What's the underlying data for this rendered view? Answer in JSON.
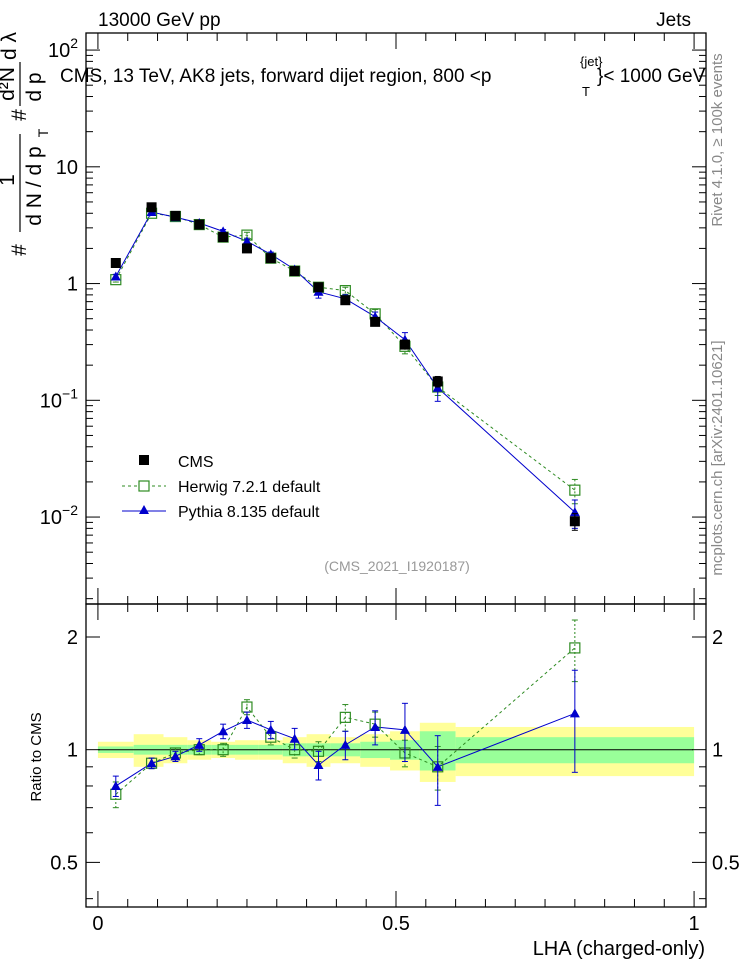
{
  "header": {
    "left": "13000 GeV pp",
    "right": "Jets",
    "analysis_tag": "(CMS_2021_I1920187)",
    "side_right": "Rivet 4.1.0, ≥ 100k events",
    "side_source": "mcplots.cern.ch [arXiv:2401.10621]"
  },
  "chart_data": [
    {
      "type": "scatter",
      "name": "main",
      "title": "CMS, 13 TeV, AK8 jets, forward dijet region, 800 <p",
      "title_sup": "{jet}",
      "title_sub": "T",
      "title_tail": "}< 1000 GeV",
      "ylabel_lead": "#",
      "ylabel_frac1_num": "1",
      "ylabel_frac1_den": "d N / d p",
      "ylabel_sub": "T",
      "ylabel_mid": "#",
      "ylabel_frac2_num": "d²N",
      "ylabel_frac2_den": "d p",
      "ylabel_tail": "d λ",
      "yscale": "log",
      "ylim": [
        0.0018,
        140
      ],
      "xlim": [
        -0.02,
        1.02
      ],
      "yticks": [
        {
          "v": 0.01,
          "b": "10",
          "e": "−2"
        },
        {
          "v": 0.1,
          "b": "10",
          "e": "−1"
        },
        {
          "v": 1,
          "b": "1",
          "e": ""
        },
        {
          "v": 10,
          "b": "10",
          "e": ""
        },
        {
          "v": 100,
          "b": "10",
          "e": "2"
        }
      ],
      "legend": [
        "CMS",
        "Herwig 7.2.1 default",
        "Pythia 8.135 default"
      ],
      "colors": {
        "cms": "#000000",
        "herwig": "#2e8b22",
        "pythia": "#0000cc"
      },
      "series": [
        {
          "name": "CMS",
          "x": [
            0.03,
            0.09,
            0.13,
            0.17,
            0.21,
            0.25,
            0.29,
            0.33,
            0.37,
            0.415,
            0.465,
            0.515,
            0.57,
            0.8
          ],
          "y": [
            1.5,
            4.5,
            3.8,
            3.2,
            2.5,
            2.0,
            1.65,
            1.28,
            0.93,
            0.72,
            0.47,
            0.3,
            0.145,
            0.0092
          ],
          "err": [
            0.06,
            0.15,
            0.12,
            0.1,
            0.08,
            0.07,
            0.06,
            0.05,
            0.04,
            0.03,
            0.03,
            0.02,
            0.015,
            0.0015
          ]
        },
        {
          "name": "Herwig 7.2.1 default",
          "x": [
            0.03,
            0.09,
            0.13,
            0.17,
            0.21,
            0.25,
            0.29,
            0.33,
            0.37,
            0.415,
            0.465,
            0.515,
            0.57,
            0.8
          ],
          "y": [
            1.08,
            4.0,
            3.75,
            3.2,
            2.5,
            2.6,
            1.65,
            1.28,
            0.93,
            0.87,
            0.55,
            0.29,
            0.13,
            0.017
          ],
          "err": [
            0.05,
            0.12,
            0.1,
            0.1,
            0.1,
            0.15,
            0.1,
            0.06,
            0.06,
            0.06,
            0.05,
            0.04,
            0.02,
            0.004
          ]
        },
        {
          "name": "Pythia 8.135 default",
          "x": [
            0.03,
            0.09,
            0.13,
            0.17,
            0.21,
            0.25,
            0.29,
            0.33,
            0.37,
            0.415,
            0.465,
            0.515,
            0.57,
            0.8
          ],
          "y": [
            1.15,
            4.1,
            3.7,
            3.3,
            2.8,
            2.3,
            1.78,
            1.32,
            0.85,
            0.74,
            0.52,
            0.33,
            0.128,
            0.011
          ],
          "err": [
            0.05,
            0.12,
            0.1,
            0.1,
            0.1,
            0.1,
            0.08,
            0.06,
            0.1,
            0.06,
            0.05,
            0.05,
            0.03,
            0.003
          ]
        }
      ]
    },
    {
      "type": "scatter",
      "name": "ratio",
      "ylabel": "Ratio to CMS",
      "xlabel": "LHA (charged-only)",
      "yscale": "log",
      "ylim": [
        0.38,
        2.45
      ],
      "xlim": [
        -0.02,
        1.02
      ],
      "yticks": [
        0.5,
        1,
        2
      ],
      "ytick_labels": [
        "0.5",
        "1",
        "2"
      ],
      "xticks": [
        0,
        0.5,
        1
      ],
      "xtick_labels": [
        "0",
        "0.5",
        "1"
      ],
      "bands": {
        "edges": [
          0,
          0.06,
          0.11,
          0.15,
          0.19,
          0.23,
          0.27,
          0.31,
          0.35,
          0.39,
          0.44,
          0.49,
          0.54,
          0.6,
          1.0
        ],
        "yellow_half": [
          0.05,
          0.1,
          0.08,
          0.06,
          0.05,
          0.06,
          0.06,
          0.08,
          0.1,
          0.08,
          0.1,
          0.12,
          0.18,
          0.15
        ],
        "green_half": [
          0.02,
          0.03,
          0.03,
          0.03,
          0.03,
          0.03,
          0.03,
          0.04,
          0.04,
          0.04,
          0.05,
          0.06,
          0.12,
          0.08
        ]
      },
      "series": [
        {
          "name": "Herwig 7.2.1 default",
          "x": [
            0.03,
            0.09,
            0.13,
            0.17,
            0.21,
            0.25,
            0.29,
            0.33,
            0.37,
            0.415,
            0.465,
            0.515,
            0.57,
            0.8
          ],
          "y": [
            0.76,
            0.92,
            0.98,
            1.0,
            1.0,
            1.3,
            1.08,
            1.0,
            0.99,
            1.22,
            1.17,
            0.98,
            0.9,
            1.87
          ],
          "err": [
            0.06,
            0.03,
            0.03,
            0.03,
            0.04,
            0.06,
            0.05,
            0.05,
            0.06,
            0.1,
            0.09,
            0.08,
            0.12,
            0.35
          ]
        },
        {
          "name": "Pythia 8.135 default",
          "x": [
            0.03,
            0.09,
            0.13,
            0.17,
            0.21,
            0.25,
            0.29,
            0.33,
            0.37,
            0.415,
            0.465,
            0.515,
            0.57,
            0.8
          ],
          "y": [
            0.8,
            0.92,
            0.96,
            1.03,
            1.12,
            1.2,
            1.13,
            1.07,
            0.91,
            1.03,
            1.15,
            1.13,
            0.9,
            1.25
          ],
          "err": [
            0.05,
            0.03,
            0.03,
            0.04,
            0.05,
            0.06,
            0.06,
            0.07,
            0.08,
            0.09,
            0.12,
            0.2,
            0.19,
            0.38
          ]
        }
      ]
    }
  ]
}
